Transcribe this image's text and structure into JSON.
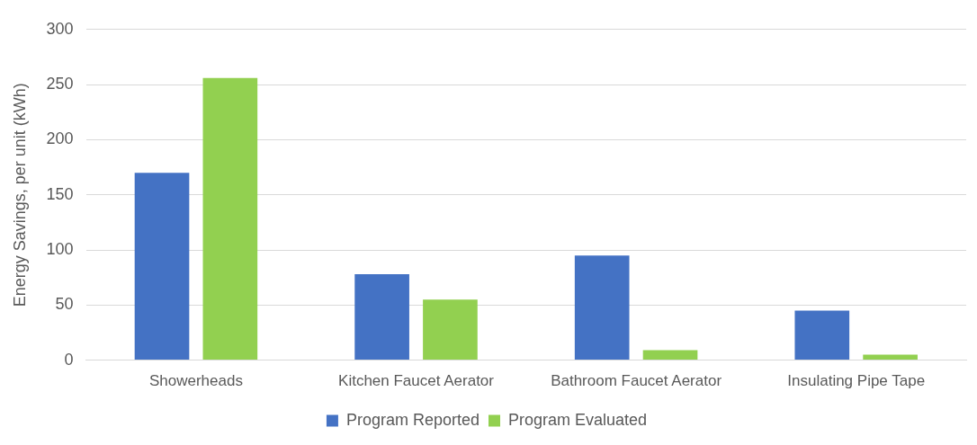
{
  "chart_data": {
    "type": "bar",
    "ylabel": "Energy Savings, per unit (kWh)",
    "categories": [
      "Showerheads",
      "Kitchen Faucet Aerator",
      "Bathroom Faucet Aerator",
      "Insulating Pipe Tape"
    ],
    "series": [
      {
        "name": "Program Reported",
        "color": "#4472c4",
        "values": [
          170,
          78,
          95,
          45
        ]
      },
      {
        "name": "Program Evaluated",
        "color": "#92d050",
        "values": [
          256,
          55,
          9,
          5
        ]
      }
    ],
    "ylim": [
      0,
      300
    ],
    "yticks": [
      0,
      50,
      100,
      150,
      200,
      250,
      300
    ],
    "grid": "y",
    "legend": "bottom"
  }
}
